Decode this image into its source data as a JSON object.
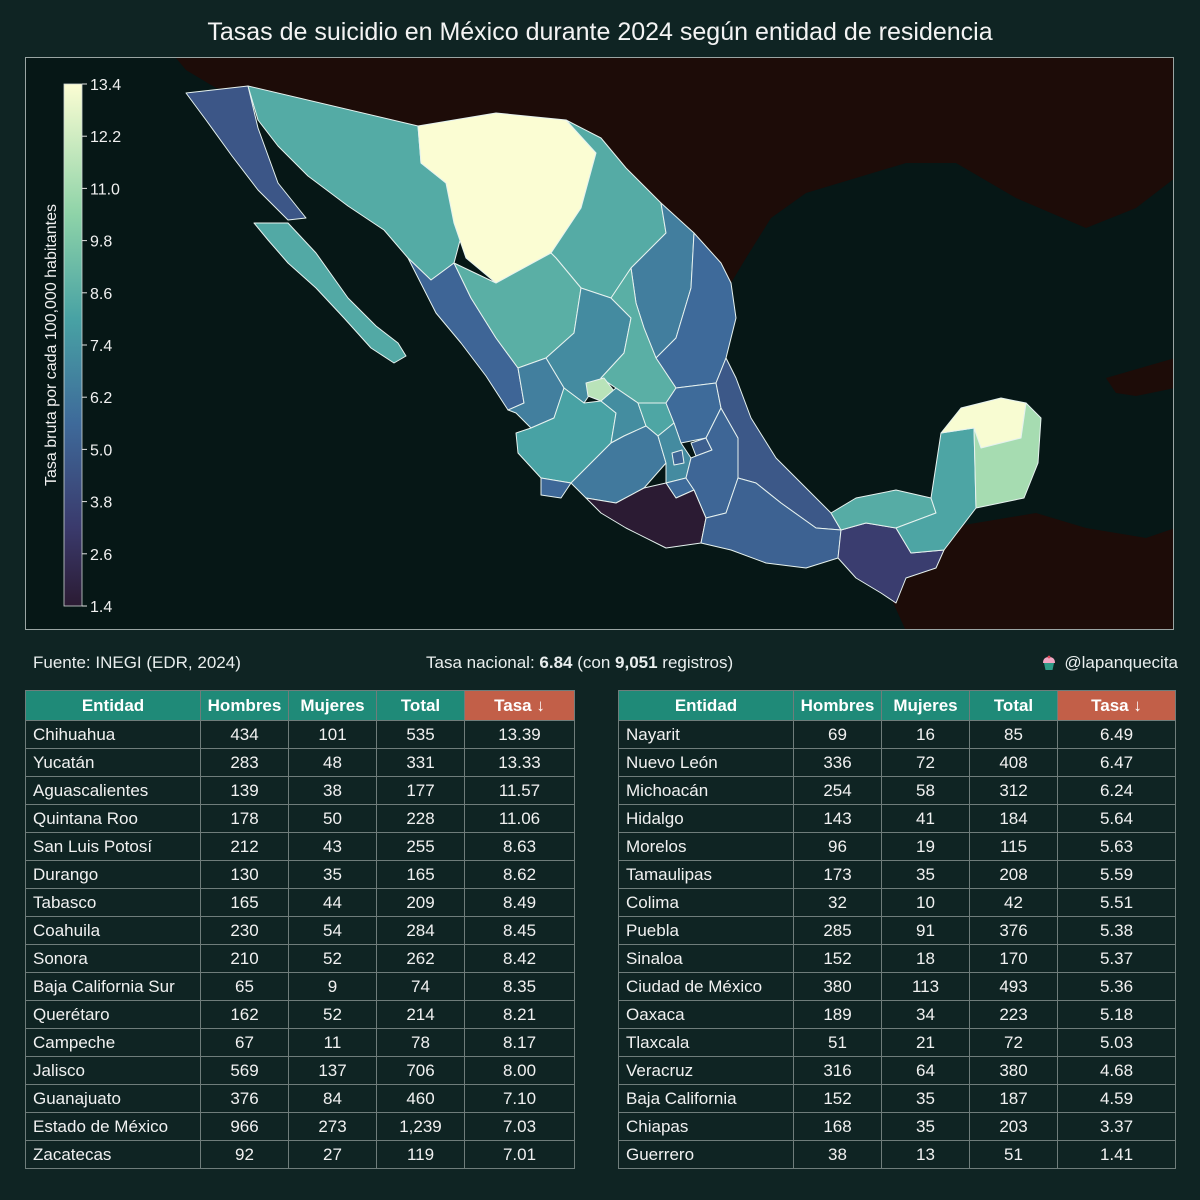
{
  "title": "Tasas de suicidio en México durante 2024 según entidad de residencia",
  "colorbar": {
    "label": "Tasa bruta por cada 100,000 habitantes",
    "ticks": [
      "13.4",
      "12.2",
      "11.0",
      "9.8",
      "8.6",
      "7.4",
      "6.2",
      "5.0",
      "3.8",
      "2.6",
      "1.4"
    ],
    "min": 1.4,
    "max": 13.4
  },
  "source": "Fuente: INEGI (EDR, 2024)",
  "national": {
    "prefix": "Tasa nacional: ",
    "rate": "6.84",
    "middle": " (con ",
    "records": "9,051",
    "suffix": " registros)"
  },
  "handle": "@lapanquecita",
  "table_headers": [
    "Entidad",
    "Hombres",
    "Mujeres",
    "Total",
    "Tasa ↓"
  ],
  "colors": {
    "header": "#1f8a78",
    "header_sorted": "#c25f48",
    "ocean": "#061716",
    "land_foreign": "#1d0c08"
  },
  "chart_data": {
    "type": "choropleth-map",
    "title": "Tasas de suicidio en México durante 2024 según entidad de residencia",
    "value_label": "Tasa bruta por cada 100,000 habitantes",
    "range": [
      1.4,
      13.4
    ],
    "rows": [
      {
        "entidad": "Chihuahua",
        "hombres": "434",
        "mujeres": "101",
        "total": "535",
        "tasa": "13.39"
      },
      {
        "entidad": "Yucatán",
        "hombres": "283",
        "mujeres": "48",
        "total": "331",
        "tasa": "13.33"
      },
      {
        "entidad": "Aguascalientes",
        "hombres": "139",
        "mujeres": "38",
        "total": "177",
        "tasa": "11.57"
      },
      {
        "entidad": "Quintana Roo",
        "hombres": "178",
        "mujeres": "50",
        "total": "228",
        "tasa": "11.06"
      },
      {
        "entidad": "San Luis Potosí",
        "hombres": "212",
        "mujeres": "43",
        "total": "255",
        "tasa": "8.63"
      },
      {
        "entidad": "Durango",
        "hombres": "130",
        "mujeres": "35",
        "total": "165",
        "tasa": "8.62"
      },
      {
        "entidad": "Tabasco",
        "hombres": "165",
        "mujeres": "44",
        "total": "209",
        "tasa": "8.49"
      },
      {
        "entidad": "Coahuila",
        "hombres": "230",
        "mujeres": "54",
        "total": "284",
        "tasa": "8.45"
      },
      {
        "entidad": "Sonora",
        "hombres": "210",
        "mujeres": "52",
        "total": "262",
        "tasa": "8.42"
      },
      {
        "entidad": "Baja California Sur",
        "hombres": "65",
        "mujeres": "9",
        "total": "74",
        "tasa": "8.35"
      },
      {
        "entidad": "Querétaro",
        "hombres": "162",
        "mujeres": "52",
        "total": "214",
        "tasa": "8.21"
      },
      {
        "entidad": "Campeche",
        "hombres": "67",
        "mujeres": "11",
        "total": "78",
        "tasa": "8.17"
      },
      {
        "entidad": "Jalisco",
        "hombres": "569",
        "mujeres": "137",
        "total": "706",
        "tasa": "8.00"
      },
      {
        "entidad": "Guanajuato",
        "hombres": "376",
        "mujeres": "84",
        "total": "460",
        "tasa": "7.10"
      },
      {
        "entidad": "Estado de México",
        "hombres": "966",
        "mujeres": "273",
        "total": "1,239",
        "tasa": "7.03"
      },
      {
        "entidad": "Zacatecas",
        "hombres": "92",
        "mujeres": "27",
        "total": "119",
        "tasa": "7.01"
      },
      {
        "entidad": "Nayarit",
        "hombres": "69",
        "mujeres": "16",
        "total": "85",
        "tasa": "6.49"
      },
      {
        "entidad": "Nuevo León",
        "hombres": "336",
        "mujeres": "72",
        "total": "408",
        "tasa": "6.47"
      },
      {
        "entidad": "Michoacán",
        "hombres": "254",
        "mujeres": "58",
        "total": "312",
        "tasa": "6.24"
      },
      {
        "entidad": "Hidalgo",
        "hombres": "143",
        "mujeres": "41",
        "total": "184",
        "tasa": "5.64"
      },
      {
        "entidad": "Morelos",
        "hombres": "96",
        "mujeres": "19",
        "total": "115",
        "tasa": "5.63"
      },
      {
        "entidad": "Tamaulipas",
        "hombres": "173",
        "mujeres": "35",
        "total": "208",
        "tasa": "5.59"
      },
      {
        "entidad": "Colima",
        "hombres": "32",
        "mujeres": "10",
        "total": "42",
        "tasa": "5.51"
      },
      {
        "entidad": "Puebla",
        "hombres": "285",
        "mujeres": "91",
        "total": "376",
        "tasa": "5.38"
      },
      {
        "entidad": "Sinaloa",
        "hombres": "152",
        "mujeres": "18",
        "total": "170",
        "tasa": "5.37"
      },
      {
        "entidad": "Ciudad de México",
        "hombres": "380",
        "mujeres": "113",
        "total": "493",
        "tasa": "5.36"
      },
      {
        "entidad": "Oaxaca",
        "hombres": "189",
        "mujeres": "34",
        "total": "223",
        "tasa": "5.18"
      },
      {
        "entidad": "Tlaxcala",
        "hombres": "51",
        "mujeres": "21",
        "total": "72",
        "tasa": "5.03"
      },
      {
        "entidad": "Veracruz",
        "hombres": "316",
        "mujeres": "64",
        "total": "380",
        "tasa": "4.68"
      },
      {
        "entidad": "Baja California",
        "hombres": "152",
        "mujeres": "35",
        "total": "187",
        "tasa": "4.59"
      },
      {
        "entidad": "Chiapas",
        "hombres": "168",
        "mujeres": "35",
        "total": "203",
        "tasa": "3.37"
      },
      {
        "entidad": "Guerrero",
        "hombres": "38",
        "mujeres": "13",
        "total": "51",
        "tasa": "1.41"
      }
    ]
  }
}
